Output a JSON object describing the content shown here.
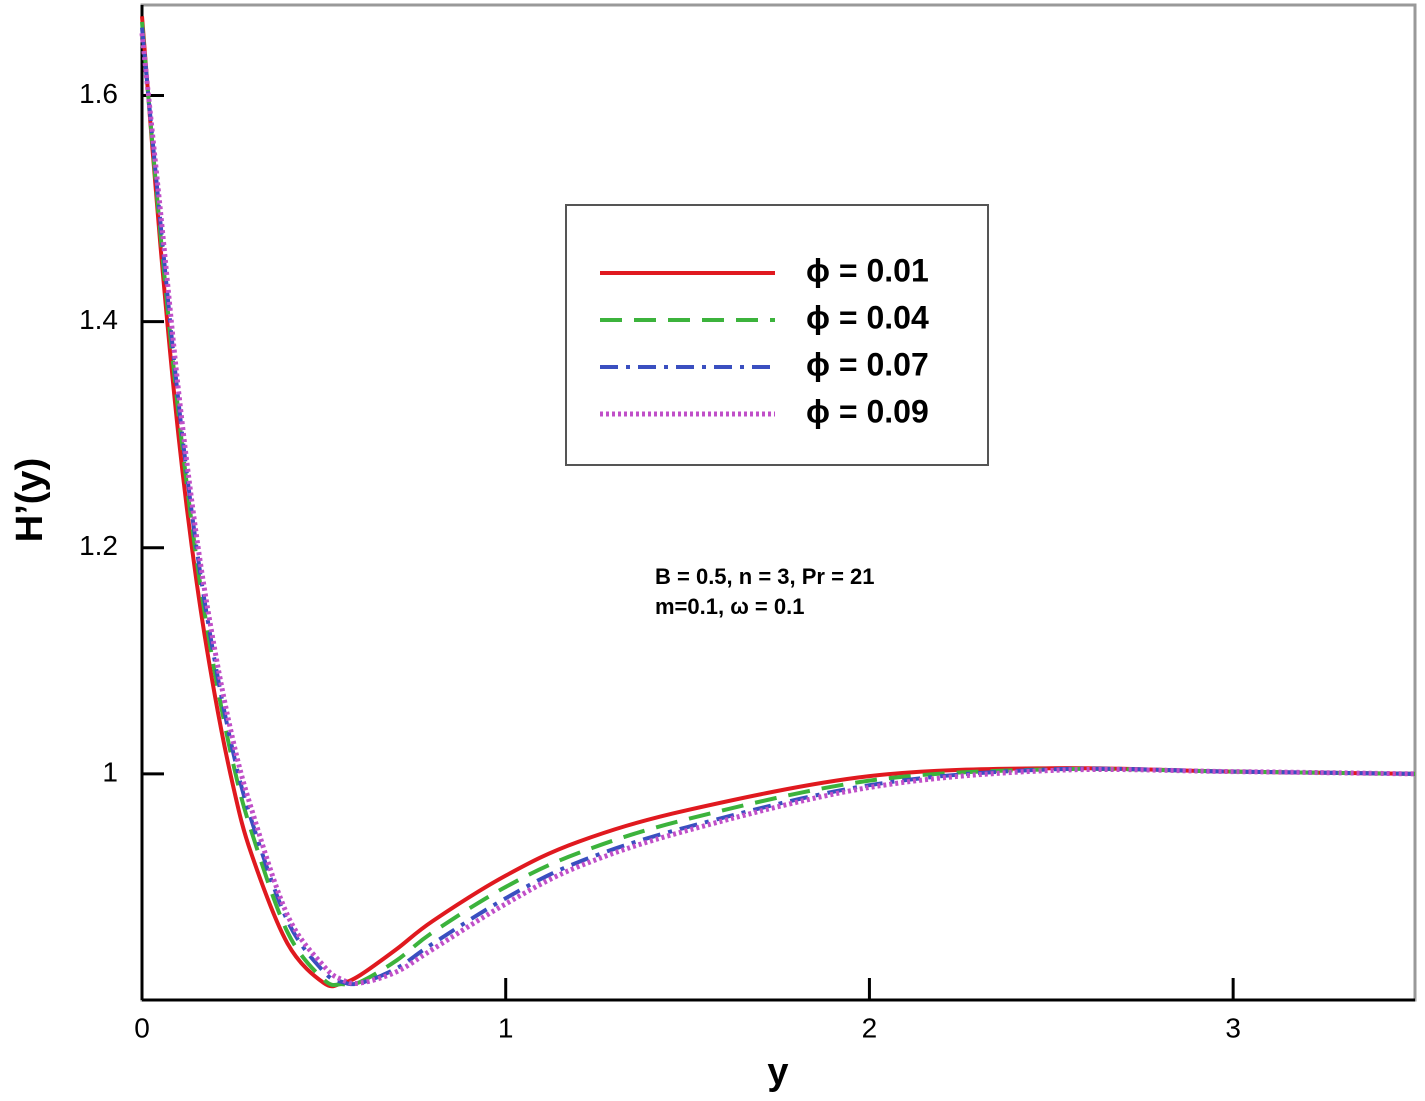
{
  "chart_data": {
    "type": "line",
    "x_label": "y",
    "y_label": "H’(y)",
    "annotations": [
      "B = 0.5, n = 3, Pr = 21",
      "m=0.1, ω = 0.1"
    ],
    "x": [
      0,
      0.05,
      0.1,
      0.15,
      0.2,
      0.25,
      0.3,
      0.4,
      0.5,
      0.55,
      0.6,
      0.7,
      0.8,
      1,
      1.2,
      1.5,
      2,
      2.5,
      3,
      3.5
    ],
    "series": [
      {
        "name": "ϕ = 0.01",
        "color": "#e0191f",
        "dash": "solid",
        "values": [
          1.67,
          1.47,
          1.3,
          1.17,
          1.07,
          0.99,
          0.93,
          0.85,
          0.815,
          0.815,
          0.822,
          0.845,
          0.87,
          0.91,
          0.94,
          0.968,
          0.998,
          1.005,
          1.002,
          1.0
        ]
      },
      {
        "name": "ϕ = 0.04",
        "color": "#3cb33c",
        "dash": "dashed",
        "values": [
          1.665,
          1.48,
          1.32,
          1.19,
          1.09,
          1.01,
          0.95,
          0.86,
          0.818,
          0.814,
          0.816,
          0.835,
          0.86,
          0.9,
          0.93,
          0.96,
          0.994,
          1.004,
          1.002,
          1.0
        ]
      },
      {
        "name": "ϕ = 0.07",
        "color": "#3a4fc0",
        "dash": "dashdot",
        "values": [
          1.66,
          1.49,
          1.33,
          1.2,
          1.1,
          1.02,
          0.96,
          0.87,
          0.825,
          0.816,
          0.815,
          0.828,
          0.85,
          0.89,
          0.922,
          0.953,
          0.99,
          1.004,
          1.002,
          1.0
        ]
      },
      {
        "name": "ϕ = 0.09",
        "color": "#c04fc8",
        "dash": "dotted",
        "values": [
          1.655,
          1.5,
          1.34,
          1.21,
          1.11,
          1.03,
          0.97,
          0.875,
          0.83,
          0.818,
          0.815,
          0.825,
          0.845,
          0.885,
          0.918,
          0.95,
          0.988,
          1.003,
          1.002,
          1.0
        ]
      }
    ],
    "xlim": [
      0,
      3.5
    ],
    "xticks": [
      0,
      1,
      2,
      3
    ],
    "ylim": [
      0.8,
      1.68
    ],
    "yticks": [
      1,
      1.2,
      1.4,
      1.6
    ],
    "grid": false,
    "legend": "upper center"
  }
}
